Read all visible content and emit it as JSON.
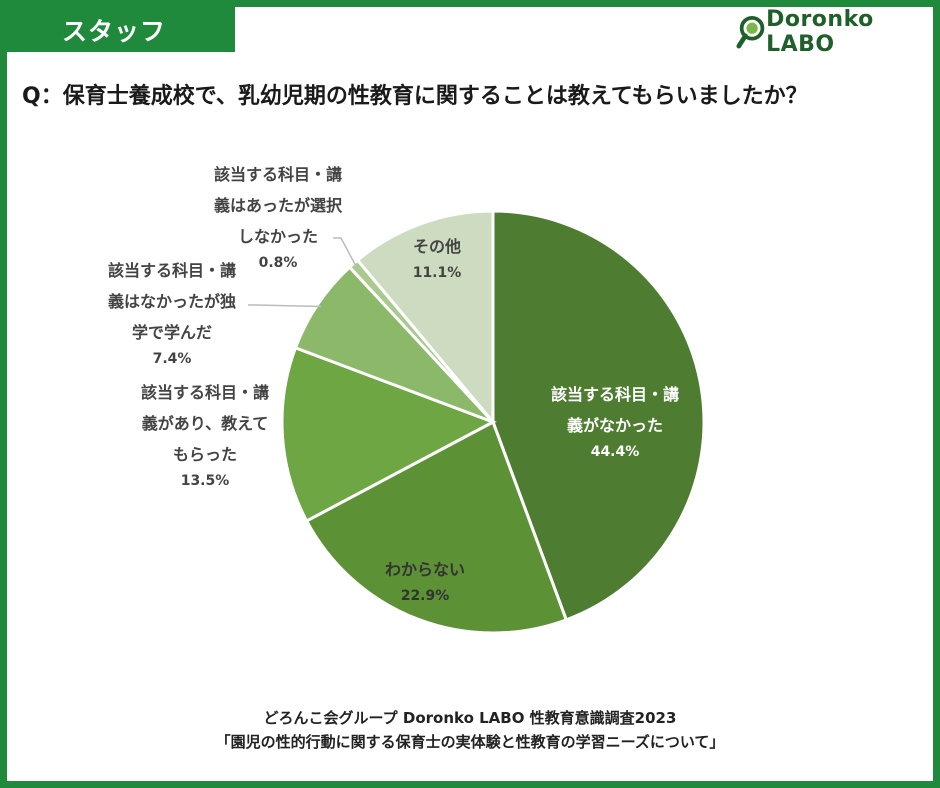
{
  "header": {
    "tag_label": "スタッフ",
    "logo_text": "Doronko LABO"
  },
  "question": "Q：保育士養成校で、乳幼児期の性教育に関することは教えてもらいましたか？",
  "chart_data": {
    "type": "pie",
    "title": "",
    "start": "12 o'clock",
    "direction": "clockwise",
    "slices": [
      {
        "label_lines": [
          "該当する科目・講",
          "義がなかった"
        ],
        "value": 44.4,
        "display": "44.4%",
        "color": "#4e7d31",
        "text_color": "#ffffff"
      },
      {
        "label_lines": [
          "わからない"
        ],
        "value": 22.9,
        "display": "22.9%",
        "color": "#5d9135",
        "text_color": "#333333"
      },
      {
        "label_lines": [
          "該当する科目・講",
          "義があり、教えて",
          "もらった"
        ],
        "value": 13.5,
        "display": "13.5%",
        "color": "#6da642",
        "text_color": "#444444"
      },
      {
        "label_lines": [
          "該当する科目・講",
          "義はなかったが独",
          "学で学んだ"
        ],
        "value": 7.4,
        "display": "7.4%",
        "color": "#8cb86a",
        "text_color": "#444444"
      },
      {
        "label_lines": [
          "該当する科目・講",
          "義はあったが選択",
          "しなかった"
        ],
        "value": 0.8,
        "display": "0.8%",
        "color": "#a9c98e",
        "text_color": "#444444"
      },
      {
        "label_lines": [
          "その他"
        ],
        "value": 11.1,
        "display": "11.1%",
        "color": "#cddcc0",
        "text_color": "#444444"
      }
    ]
  },
  "footer": {
    "line1": "どろんこ会グループ Doronko LABO 性教育意識調査2023",
    "line2": "「園児の性的行動に関する保育士の実体験と性教育の学習ニーズについて」"
  }
}
